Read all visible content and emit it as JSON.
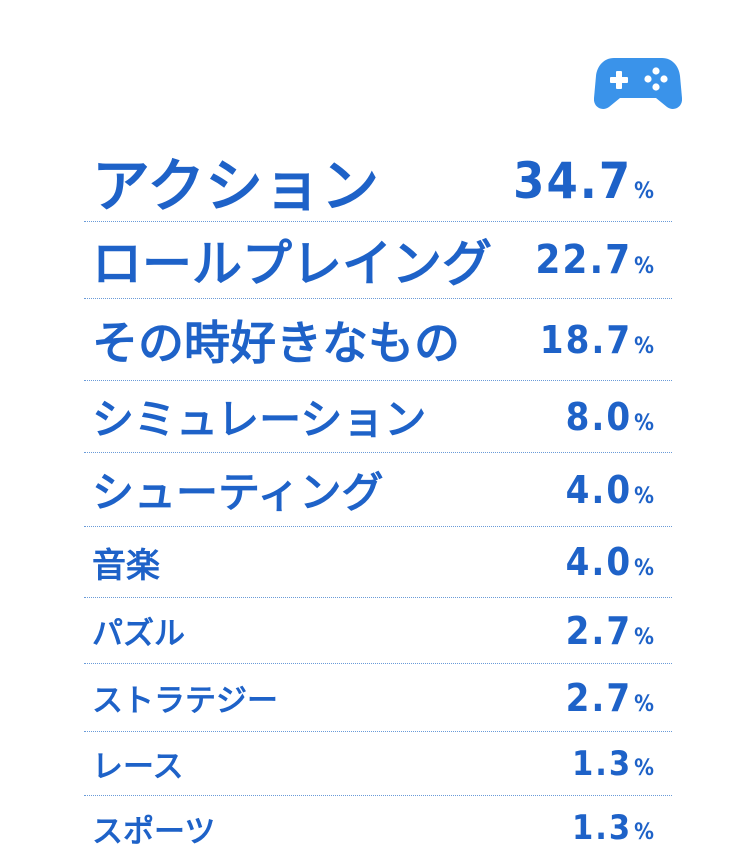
{
  "colors": {
    "text": "#1e62c8",
    "icon": "#3a93ea",
    "separator": "#6a9bd8",
    "background": "#ffffff"
  },
  "icon": {
    "name": "gamepad-icon"
  },
  "chart_data": {
    "type": "table",
    "percent_sign": "%",
    "categories": [
      "アクション",
      "ロールプレイング",
      "その時好きなもの",
      "シミュレーション",
      "シューティング",
      "音楽",
      "パズル",
      "ストラテジー",
      "レース",
      "スポーツ"
    ],
    "values": [
      34.7,
      22.7,
      18.7,
      8.0,
      4.0,
      4.0,
      2.7,
      2.7,
      1.3,
      1.3
    ],
    "value_labels": [
      "34.7",
      "22.7",
      "18.7",
      "8.0",
      "4.0",
      "4.0",
      "2.7",
      "2.7",
      "1.3",
      "1.3"
    ]
  }
}
